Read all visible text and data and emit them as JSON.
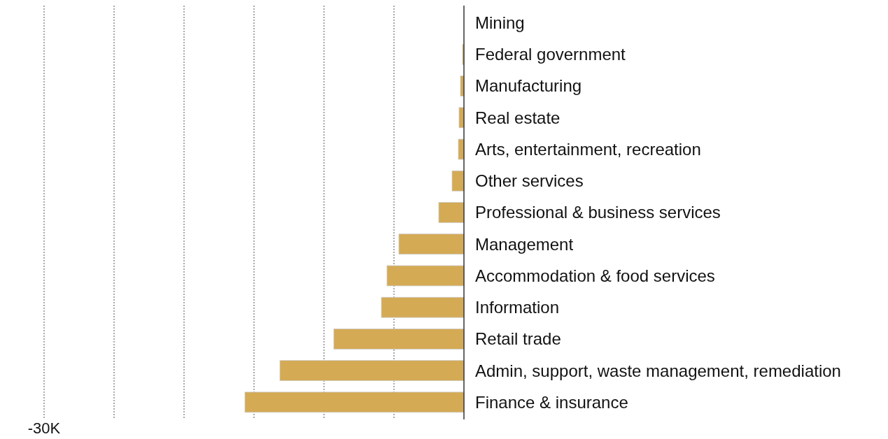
{
  "chart_data": {
    "type": "bar",
    "orientation": "horizontal",
    "categories": [
      "Mining",
      "Federal government",
      "Manufacturing",
      "Real estate",
      "Arts, entertainment, recreation",
      "Other services",
      "Professional & business services",
      "Management",
      "Accommodation & food services",
      "Information",
      "Retail trade",
      "Admin, support, waste management, remediation",
      "Finance & insurance"
    ],
    "values": [
      0,
      -100,
      -250,
      -350,
      -400,
      -850,
      -1800,
      -4650,
      -5500,
      -5900,
      -9300,
      -13150,
      -15650
    ],
    "color": "#d4aa55",
    "xlim": [
      -30000,
      0
    ],
    "xticks": [
      {
        "value": -30000,
        "label": "-30K"
      },
      {
        "value": -25000,
        "label": null
      },
      {
        "value": -20000,
        "label": null
      },
      {
        "value": -15000,
        "label": null
      },
      {
        "value": -10000,
        "label": null
      },
      {
        "value": -5000,
        "label": null
      }
    ],
    "grid": "x"
  }
}
